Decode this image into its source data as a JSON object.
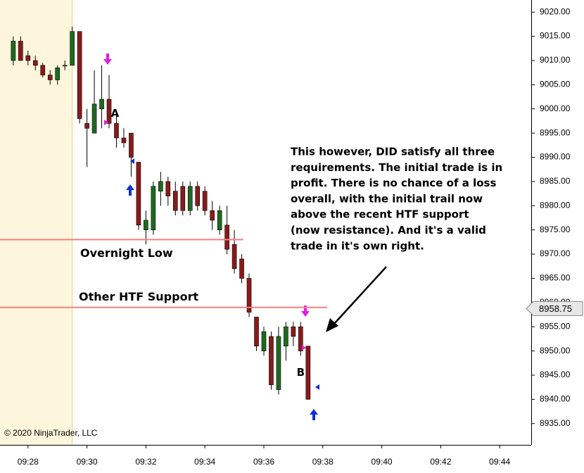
{
  "chart_data": {
    "type": "candlestick",
    "x": [
      567.5,
      567.75,
      568,
      568.25,
      568.5,
      568.75,
      569,
      569.25,
      569.5,
      569.75,
      570,
      570.25,
      570.5,
      570.75,
      571,
      571.25,
      571.5,
      571.75,
      572,
      572.25,
      572.5,
      572.75,
      573,
      573.25,
      573.5,
      573.75,
      574,
      574.25,
      574.5,
      574.75,
      575,
      575.25,
      575.5,
      575.75,
      576,
      576.25,
      576.5,
      576.75,
      577,
      577.25,
      577.5
    ],
    "open": [
      9010,
      9014,
      9011,
      9010,
      9009,
      9007,
      9006,
      9009,
      9009,
      9016,
      8997,
      8995,
      9000,
      9002,
      8997,
      8994,
      8995,
      8989,
      8975,
      8975,
      8983,
      8985,
      8983,
      8984,
      8979,
      8984,
      8983,
      8979,
      8975,
      8976,
      8972,
      8969,
      8965,
      8957,
      8950,
      8953,
      8942,
      8951,
      8955,
      8955,
      8951
    ],
    "high": [
      9015,
      9015,
      9012,
      9011,
      9009.5,
      9008,
      9009,
      9010,
      9017,
      9016,
      9000,
      9008,
      9009,
      9007,
      8999,
      8996,
      8995,
      8989,
      8979,
      8985,
      8987,
      8986,
      8985,
      8985,
      8985,
      8985,
      8984,
      8981,
      8980,
      8980,
      8975,
      8970,
      8966,
      8957,
      8955,
      8954,
      8955,
      8956,
      8956,
      8956,
      8951
    ],
    "low": [
      9009,
      9010,
      9009,
      9008,
      9006.5,
      9005,
      9005,
      9008,
      9009,
      8997,
      8988,
      8995,
      8996,
      8996,
      8992,
      8992,
      8986,
      8975,
      8972,
      8974,
      8980,
      8980,
      8978,
      8978,
      8978,
      8979,
      8978,
      8975,
      8974,
      8970,
      8966,
      8964,
      8957,
      8950,
      8949,
      8942,
      8941,
      8948,
      8951,
      8949,
      8940
    ],
    "close": [
      9014,
      9010,
      9010,
      9009,
      9007,
      9006,
      9008.5,
      9009,
      9016,
      8998,
      8996,
      9001,
      9002,
      8997,
      8994,
      8993,
      8990,
      8976,
      8977,
      8984,
      8985,
      8982,
      8979,
      8979,
      8984,
      8980,
      8979,
      8977,
      8979,
      8971,
      8967,
      8965,
      8958,
      8951,
      8954,
      8943,
      8953,
      8955,
      8953,
      8950,
      8940
    ],
    "up_color": "#1e6b1e",
    "down_color": "#8b1a1a",
    "xlim": [
      567.05,
      585.07
    ],
    "xticks": [
      {
        "value": 568,
        "label": "09:28"
      },
      {
        "value": 570,
        "label": "09:30"
      },
      {
        "value": 572,
        "label": "09:32"
      },
      {
        "value": 574,
        "label": "09:34"
      },
      {
        "value": 576,
        "label": "09:36"
      },
      {
        "value": 578,
        "label": "09:38"
      },
      {
        "value": 580,
        "label": "09:40"
      },
      {
        "value": 582,
        "label": "09:42"
      },
      {
        "value": 584,
        "label": "09:44"
      }
    ],
    "ylim": [
      8930.6,
      9022.5
    ],
    "yticks": [
      {
        "value": 8935,
        "label": "8935.00"
      },
      {
        "value": 8940,
        "label": "8940.00"
      },
      {
        "value": 8945,
        "label": "8945.00"
      },
      {
        "value": 8950,
        "label": "8950.00"
      },
      {
        "value": 8955,
        "label": "8955.00"
      },
      {
        "value": 8960,
        "label": "8960.00"
      },
      {
        "value": 8965,
        "label": "8965.00"
      },
      {
        "value": 8970,
        "label": "8970.00"
      },
      {
        "value": 8975,
        "label": "8975.00"
      },
      {
        "value": 8980,
        "label": "8980.00"
      },
      {
        "value": 8985,
        "label": "8985.00"
      },
      {
        "value": 8990,
        "label": "8990.00"
      },
      {
        "value": 8995,
        "label": "8995.00"
      },
      {
        "value": 9000,
        "label": "9000.00"
      },
      {
        "value": 9005,
        "label": "9005.00"
      },
      {
        "value": 9010,
        "label": "9010.00"
      },
      {
        "value": 9015,
        "label": "9015.00"
      },
      {
        "value": 9020,
        "label": "9020.00"
      }
    ],
    "last_price": {
      "value": 8958.75,
      "label": "8958.75"
    },
    "session_start": 569.5,
    "levels": [
      {
        "label": "Overnight Low",
        "value": 8973,
        "end": 575.3
      },
      {
        "label": "Other HTF Support",
        "value": 8959,
        "end": 578.15
      }
    ],
    "marks": [
      {
        "label": "A",
        "x": 570.95,
        "y": 8999
      },
      {
        "label": "B",
        "x": 577.25,
        "y": 8945.5
      }
    ],
    "note_lines": [
      "This however, DID satisfy all three",
      "requirements. The initial trade is in",
      "profit. There is no chance of a loss",
      "overall, with the initial trail now",
      "above the recent HTF support",
      "(now resistance). And it's a valid",
      "trade in it's own right."
    ],
    "copyright": "© 2020 NinjaTrader, LLC"
  }
}
